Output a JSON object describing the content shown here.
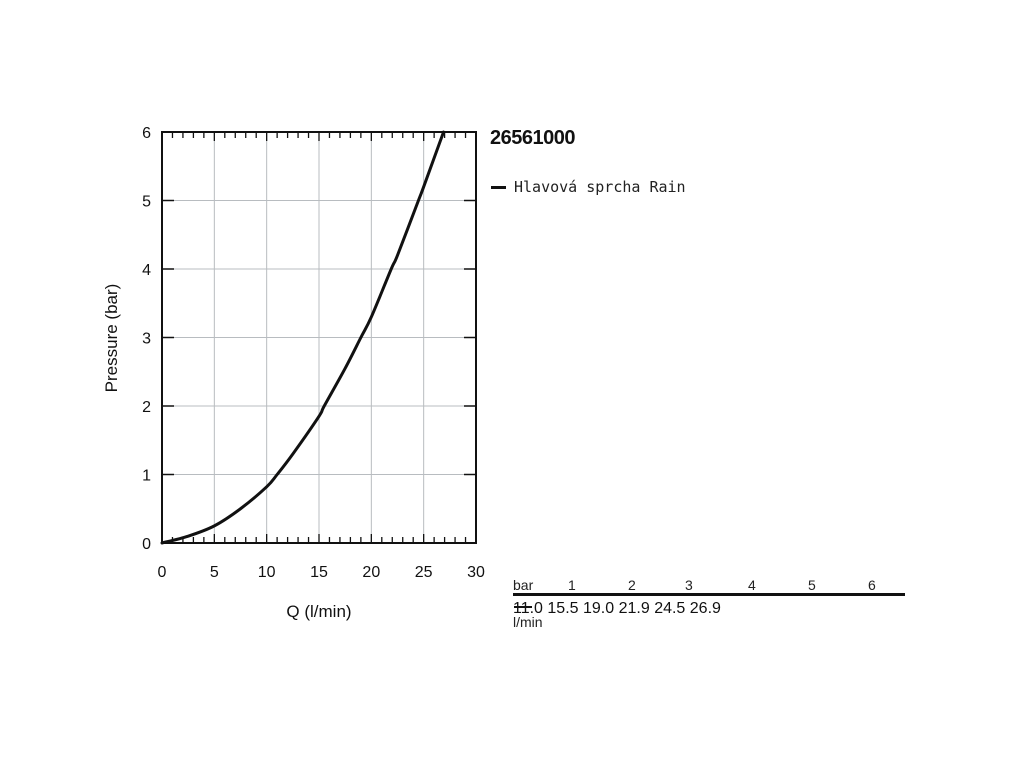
{
  "chart_data": {
    "type": "line",
    "xlabel": "Q (l/min)",
    "ylabel": "Pressure (bar)",
    "xlim": [
      0,
      30
    ],
    "ylim": [
      0,
      6
    ],
    "x_ticks": [
      "0",
      "5",
      "10",
      "15",
      "20",
      "25",
      "30"
    ],
    "y_ticks": [
      "0",
      "1",
      "2",
      "3",
      "4",
      "5",
      "6"
    ],
    "grid": true,
    "series": [
      {
        "name": "Hlavová sprcha Rain",
        "color": "#111111",
        "x": [
          0,
          2.5,
          5,
          7.5,
          10,
          11,
          12.5,
          15,
          15.5,
          17.5,
          19,
          20,
          21.9,
          22.5,
          24.5,
          25,
          26.9
        ],
        "y": [
          0,
          0.1,
          0.25,
          0.5,
          0.82,
          1,
          1.3,
          1.85,
          2,
          2.55,
          3,
          3.3,
          4,
          4.2,
          5,
          5.2,
          6
        ]
      }
    ]
  },
  "product_code": "26561000",
  "legend": {
    "label": "Hlavová sprcha Rain"
  },
  "flow_table": {
    "header_label": "bar",
    "unit_label": "l/min",
    "pressures": [
      "1",
      "2",
      "3",
      "4",
      "5",
      "6"
    ],
    "flows": [
      "11.0",
      "15.5",
      "19.0",
      "21.9",
      "24.5",
      "26.9"
    ]
  }
}
